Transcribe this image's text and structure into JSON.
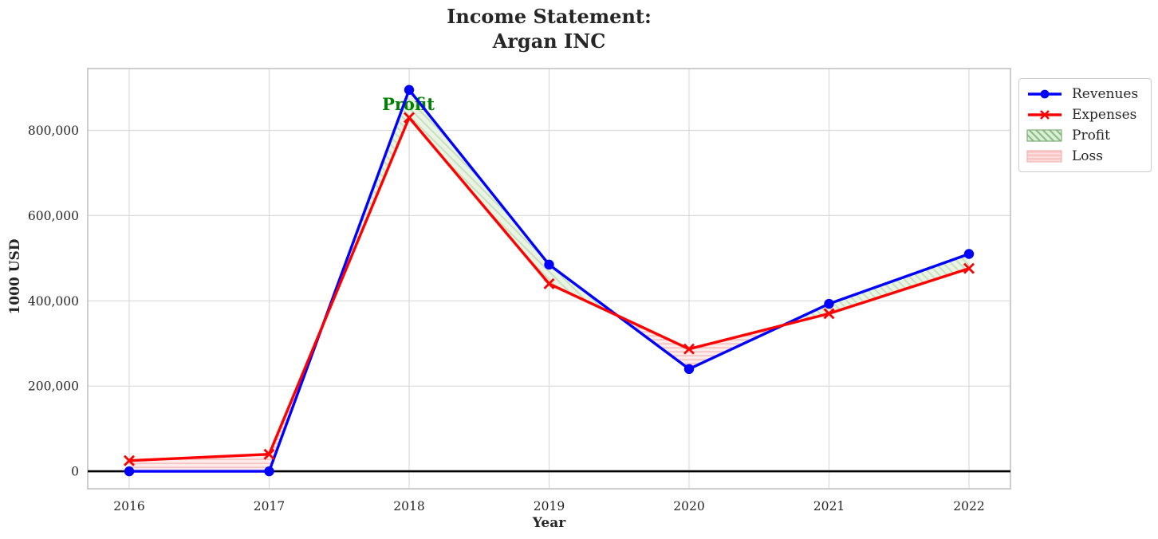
{
  "chart_data": {
    "type": "line",
    "title_lines": [
      "Income Statement:",
      "Argan INC"
    ],
    "xlabel": "Year",
    "ylabel": "1000 USD",
    "x": [
      2016,
      2017,
      2018,
      2019,
      2020,
      2021,
      2022
    ],
    "series": [
      {
        "name": "Revenues",
        "color": "#0000ff",
        "marker": "circle",
        "values": [
          0,
          0,
          895000,
          485000,
          240000,
          393000,
          510000
        ]
      },
      {
        "name": "Expenses",
        "color": "#ff0000",
        "marker": "x",
        "values": [
          25000,
          40000,
          830000,
          440000,
          287000,
          370000,
          476000
        ]
      }
    ],
    "yticks": [
      0,
      200000,
      400000,
      600000,
      800000
    ],
    "ylim": [
      -41000,
      945000
    ],
    "grid": true,
    "zero_line": true,
    "fill_colors": {
      "profit_face": "#eaf4e4",
      "profit_hatch": "#c9e0bf",
      "loss_face": "#fdecec",
      "loss_hatch": "#f6c2c2"
    },
    "annotation": {
      "text": "Profit",
      "x": 2018,
      "y": 862000,
      "color": "#008000"
    },
    "legend": {
      "position": "outside-top-right",
      "items": [
        {
          "name": "revenues",
          "label": "Revenues",
          "kind": "line",
          "color": "#0000ff",
          "marker": "circle"
        },
        {
          "name": "expenses",
          "label": "Expenses",
          "kind": "line",
          "color": "#ff0000",
          "marker": "x"
        },
        {
          "name": "profit",
          "label": "Profit",
          "kind": "patch",
          "hatch": "diagonal",
          "face": "#ddeed8",
          "hatch_color": "#8abc81",
          "edge": "#7fae78"
        },
        {
          "name": "loss",
          "label": "Loss",
          "kind": "patch",
          "hatch": "horizontal",
          "face": "#f9c6c6",
          "hatch_color": "#fcdede",
          "edge": "#f2b2b2"
        }
      ]
    }
  }
}
